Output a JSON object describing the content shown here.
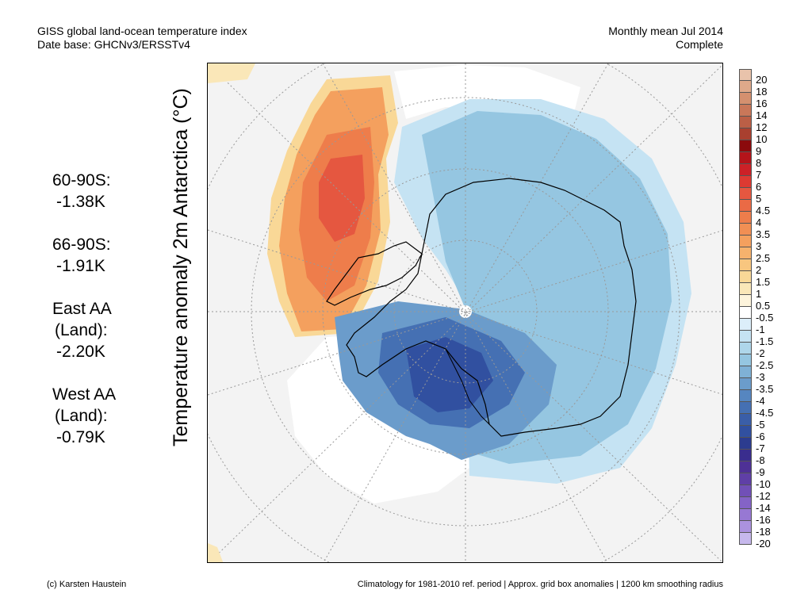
{
  "header": {
    "title_line1": "GISS global land-ocean temperature index",
    "title_line2": "Date base: GHCNv3/ERSSTv4",
    "right_line1": "Monthly mean Jul 2014",
    "right_line2": "Complete"
  },
  "stats": [
    {
      "label": "60-90S:",
      "value": "-1.38K"
    },
    {
      "label": "66-90S:",
      "value": "-1.91K"
    },
    {
      "label": "East AA",
      "label2": "(Land):",
      "value": "-2.20K"
    },
    {
      "label": "West AA",
      "label2": "(Land):",
      "value": "-0.79K"
    }
  ],
  "vertical_label": "Temperature anomaly 2m Antarctica (°C)",
  "colorbar": {
    "labels": [
      "20",
      "18",
      "16",
      "14",
      "12",
      "10",
      "9",
      "8",
      "7",
      "6",
      "5",
      "4.5",
      "4",
      "3.5",
      "3",
      "2.5",
      "2",
      "1.5",
      "1",
      "0.5",
      "-0.5",
      "-1",
      "-1.5",
      "-2",
      "-2.5",
      "-3",
      "-3.5",
      "-4",
      "-4.5",
      "-5",
      "-6",
      "-7",
      "-8",
      "-9",
      "-10",
      "-12",
      "-14",
      "-16",
      "-18",
      "-20"
    ],
    "colors": [
      "#e9c3ab",
      "#dfa98a",
      "#d4906f",
      "#c97759",
      "#bb5f46",
      "#a9402f",
      "#8b0a0c",
      "#b4141a",
      "#cc2127",
      "#dd3a32",
      "#e55740",
      "#ea6a45",
      "#ee7d4b",
      "#f18f54",
      "#f4a05e",
      "#f6b26d",
      "#f8c67f",
      "#f9d897",
      "#fae7b8",
      "#fdf4dc",
      "#ffffff",
      "#dceefa",
      "#c5e3f3",
      "#aed6ea",
      "#95c6e1",
      "#7fb1d6",
      "#6b9ccb",
      "#5686c0",
      "#4570b3",
      "#3a5ea8",
      "#3150a0",
      "#2c3c8f",
      "#3a2d8e",
      "#4e3196",
      "#5f3fa6",
      "#7150b7",
      "#8463c6",
      "#9778d3",
      "#ab92de",
      "#c6b8ec"
    ]
  },
  "footer": {
    "left": "(c) Karsten Haustein",
    "right": "Climatology for 1981-2010 ref. period | Approx. grid box anomalies | 1200 km smoothing radius"
  }
}
